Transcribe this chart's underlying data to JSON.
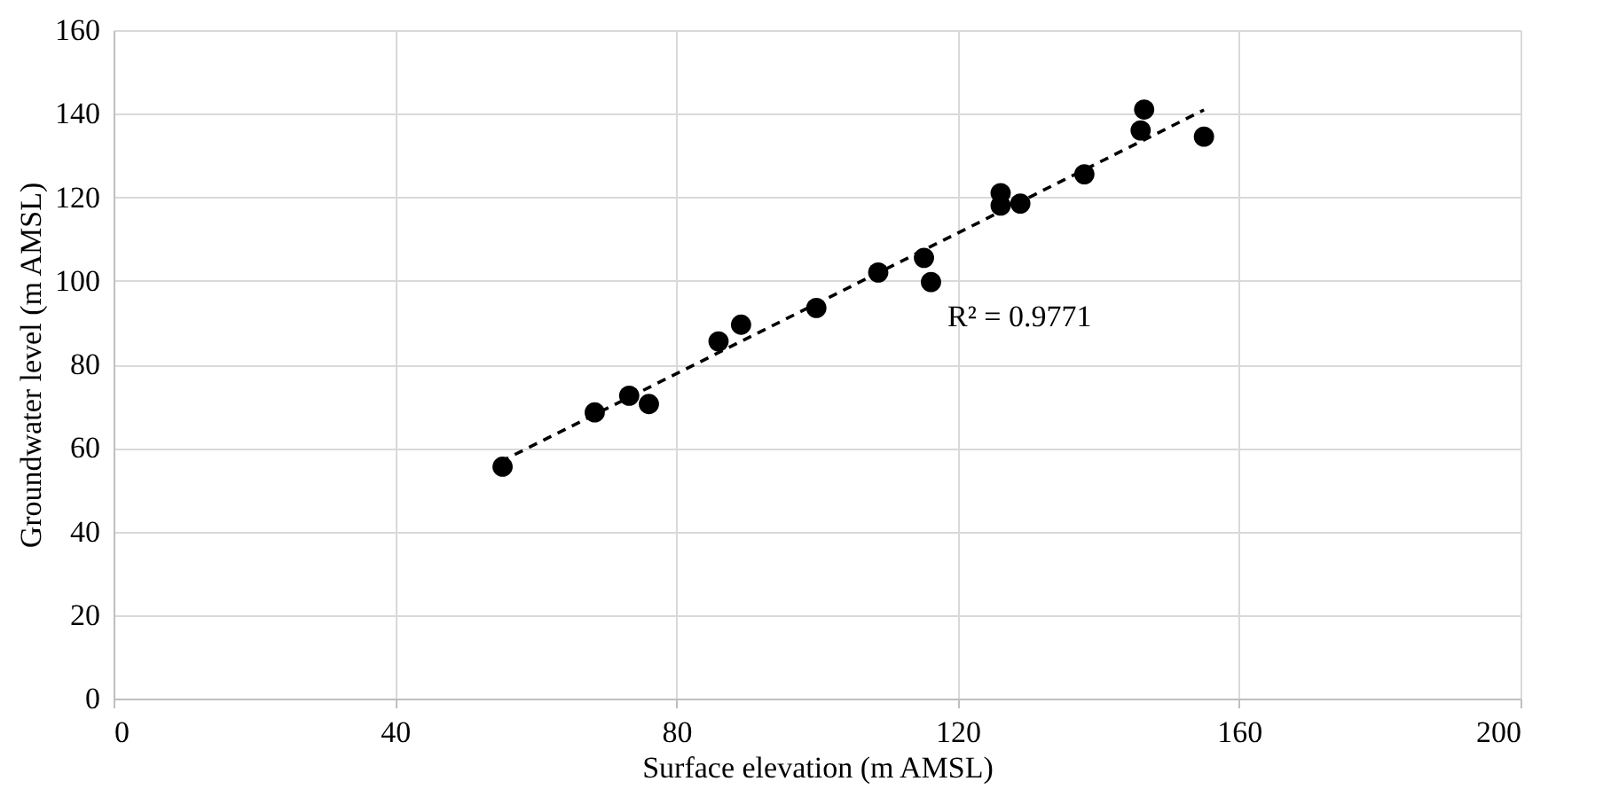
{
  "chart_data": {
    "type": "scatter",
    "xlabel": "Surface elevation (m AMSL)",
    "ylabel": "Groundwater level (m AMSL)",
    "xlim": [
      0,
      200
    ],
    "xticks": [
      0,
      40,
      80,
      120,
      160,
      200
    ],
    "ylim": [
      0,
      160
    ],
    "yticks": [
      0,
      20,
      40,
      60,
      80,
      100,
      120,
      140,
      160
    ],
    "grid": true,
    "marker": "circle",
    "annotations": [
      "R² = 0.9771"
    ],
    "series": [
      {
        "color": "#000000",
        "x": [
          55.3,
          68.4,
          73.3,
          76.1,
          86.0,
          89.2,
          99.9,
          108.7,
          115.2,
          116.2,
          126.1,
          126.1,
          128.9,
          138.0,
          146.0,
          146.5,
          155.0
        ],
        "values": [
          55.5,
          68.5,
          72.5,
          70.5,
          85.5,
          89.5,
          93.5,
          102,
          105.5,
          99.7,
          121,
          118,
          118.5,
          125.5,
          136,
          141,
          134.5
        ]
      },
      {
        "color": "#000000",
        "type": "line",
        "line_style": "dashed",
        "marker": "none",
        "x": [
          55,
          155
        ],
        "values": [
          56.7,
          140.9
        ]
      }
    ]
  }
}
